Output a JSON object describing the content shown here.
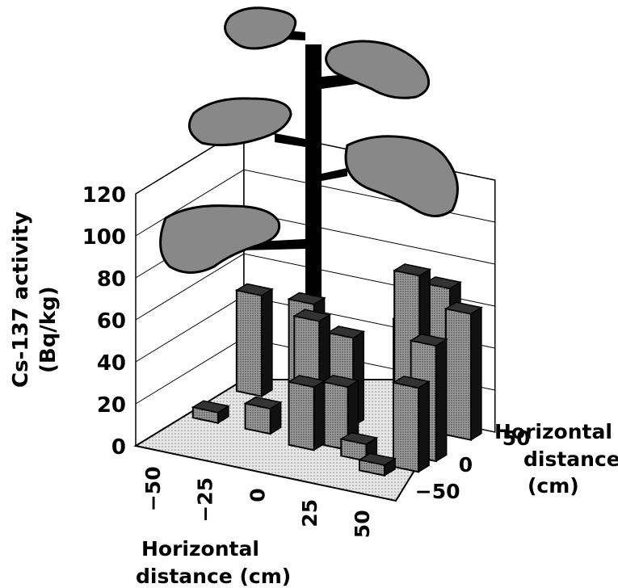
{
  "chart_data": {
    "type": "bar3d",
    "title": "",
    "zlabel_line1": "Cs-137 activity",
    "zlabel_line2": "(Bq/kg)",
    "xlabel_line1": "Horizontal",
    "xlabel_line2": "distance (cm)",
    "ylabel_line1": "Horizontal",
    "ylabel_line2": "distance",
    "ylabel_line3": "(cm)",
    "zlim": [
      0,
      120
    ],
    "z_ticks": [
      "0",
      "20",
      "40",
      "60",
      "80",
      "100",
      "120"
    ],
    "x_ticks": [
      "−50",
      "−25",
      "0",
      "25",
      "50"
    ],
    "y_ticks": [
      "−50",
      "0",
      "50"
    ],
    "bars": [
      {
        "x": -50,
        "y": 0,
        "value": 5
      },
      {
        "x": -50,
        "y": 50,
        "value": 48
      },
      {
        "x": -25,
        "y": 0,
        "value": 12
      },
      {
        "x": -25,
        "y": 50,
        "value": 49
      },
      {
        "x": -12,
        "y": 25,
        "value": 50
      },
      {
        "x": 0,
        "y": 35,
        "value": 42
      },
      {
        "x": 0,
        "y": -10,
        "value": 30
      },
      {
        "x": 12,
        "y": 0,
        "value": 30
      },
      {
        "x": 25,
        "y": -10,
        "value": 8
      },
      {
        "x": 25,
        "y": 50,
        "value": 50
      },
      {
        "x": 40,
        "y": -25,
        "value": 5
      },
      {
        "x": 40,
        "y": 50,
        "value": 70
      },
      {
        "x": 40,
        "y": 15,
        "value": 85
      },
      {
        "x": 50,
        "y": 10,
        "value": 55
      },
      {
        "x": 50,
        "y": -10,
        "value": 40
      },
      {
        "x": 50,
        "y": 50,
        "value": 60
      }
    ],
    "grid": true,
    "legend": "none"
  }
}
